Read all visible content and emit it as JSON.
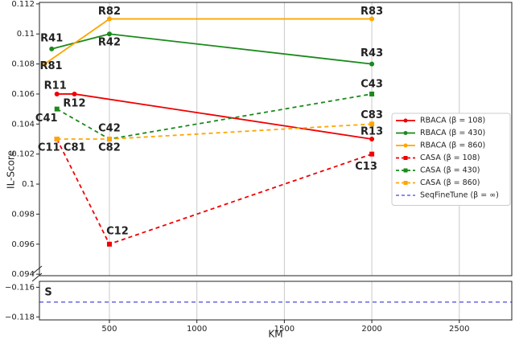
{
  "chart_data": [
    {
      "type": "line",
      "ylabel": "IL-Score",
      "xlim": [
        100,
        2800
      ],
      "xticks": [
        500,
        1000,
        1500,
        2000,
        2500
      ],
      "ylim": [
        0.0939,
        0.1121
      ],
      "yticks": [
        0.094,
        0.096,
        0.098,
        0.1,
        0.102,
        0.104,
        0.106,
        0.108,
        0.11,
        0.112
      ],
      "grid": true,
      "legend": "right",
      "series": [
        {
          "name": "RBACA (β = 108)",
          "color": "#f00000",
          "linestyle": "solid",
          "marker": "circle",
          "x": [
            200,
            300,
            2000
          ],
          "values": [
            0.106,
            0.106,
            0.103
          ],
          "point_labels": [
            "R11",
            "R12",
            "R13"
          ]
        },
        {
          "name": "RBACA (β = 430)",
          "color": "#1a8a1a",
          "linestyle": "solid",
          "marker": "circle",
          "x": [
            170,
            500,
            2000
          ],
          "values": [
            0.109,
            0.11,
            0.108
          ],
          "point_labels": [
            "R41",
            "R42",
            "R43"
          ]
        },
        {
          "name": "RBACA (β = 860)",
          "color": "#ffa500",
          "linestyle": "solid",
          "marker": "circle",
          "x": [
            130,
            500,
            2000
          ],
          "values": [
            0.108,
            0.111,
            0.111
          ],
          "point_labels": [
            "R81",
            "R82",
            "R83"
          ]
        },
        {
          "name": "CASA (β = 108)",
          "color": "#f00000",
          "linestyle": "dashed",
          "marker": "square",
          "x": [
            200,
            500,
            2000
          ],
          "values": [
            0.103,
            0.096,
            0.102
          ],
          "point_labels": [
            "C11",
            "C12",
            "C13"
          ]
        },
        {
          "name": "CASA (β = 430)",
          "color": "#1a8a1a",
          "linestyle": "dashed",
          "marker": "square",
          "x": [
            200,
            500,
            2000
          ],
          "values": [
            0.105,
            0.103,
            0.106
          ],
          "point_labels": [
            "C41",
            "C42",
            "C43"
          ]
        },
        {
          "name": "CASA (β = 860)",
          "color": "#ffa500",
          "linestyle": "dashed",
          "marker": "square",
          "x": [
            200,
            500,
            2000
          ],
          "values": [
            0.103,
            0.103,
            0.104
          ],
          "point_labels": [
            "C81",
            "C82",
            "C83"
          ]
        }
      ]
    },
    {
      "type": "line",
      "xlabel": "KM",
      "xlim": [
        100,
        2800
      ],
      "xticks": [
        500,
        1000,
        1500,
        2000,
        2500
      ],
      "ylim": [
        -0.1182,
        -0.1156
      ],
      "yticks": [
        {
          "value": -0.116,
          "label": "−0.116"
        },
        {
          "value": -0.118,
          "label": "−0.118"
        }
      ],
      "grid": true,
      "series": [
        {
          "name": "SeqFineTune (β = ∞)",
          "color": "#1a1acc",
          "linestyle": "dashed",
          "marker": "none",
          "x": [
            100,
            2800
          ],
          "values": [
            -0.117,
            -0.117
          ],
          "point_labels": [
            "S",
            null
          ]
        }
      ]
    }
  ]
}
